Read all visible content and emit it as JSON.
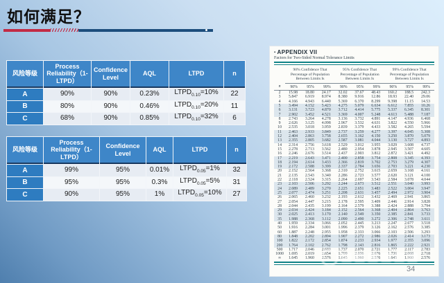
{
  "slide": {
    "title": "如何满足？",
    "page_number": "34"
  },
  "risk_tables": [
    {
      "headers": [
        "风险等级",
        "Process Reliability（1-LTPD）",
        "Confidence Level",
        "AQL",
        "LTPD",
        "n"
      ],
      "rows": [
        {
          "level": "A",
          "cells": [
            "90%",
            "90%",
            "0.23%"
          ],
          "ltpd": {
            "base": "LTPD",
            "sub": "0.10",
            "rest": "=10%"
          },
          "n": "22"
        },
        {
          "level": "B",
          "cells": [
            "80%",
            "90%",
            "0.46%"
          ],
          "ltpd": {
            "base": "LTPD",
            "sub": "0.10",
            "rest": "=20%"
          },
          "n": "11"
        },
        {
          "level": "C",
          "cells": [
            "68%",
            "90%",
            "0.85%"
          ],
          "ltpd": {
            "base": "LTPD",
            "sub": "0.10",
            "rest": "=32%"
          },
          "n": "6"
        }
      ]
    },
    {
      "headers": [
        "风险等级",
        "Process Reliability（1-LTPD）",
        "Confidence Level",
        "AQL",
        "LTPD",
        "n"
      ],
      "rows": [
        {
          "level": "A",
          "cells": [
            "99%",
            "95%",
            "0.01%"
          ],
          "ltpd": {
            "base": "LTPD",
            "sub": "0.05",
            "rest": "=1%"
          },
          "n": "32"
        },
        {
          "level": "B",
          "cells": [
            "95%",
            "95%",
            "0.3%"
          ],
          "ltpd": {
            "base": "LTPD",
            "sub": "0.05",
            "rest": "=5%"
          },
          "n": "31"
        },
        {
          "level": "C",
          "cells": [
            "90%",
            "95%",
            "1%"
          ],
          "ltpd": {
            "base": "LTPD",
            "sub": "0.05",
            "rest": "=10%"
          },
          "n": "27"
        }
      ]
    }
  ],
  "appendix": {
    "bullet": "▪",
    "title": "APPENDIX VII",
    "subtitle": "Factors for Two-Sided Normal Tolerance Limits",
    "group_headers": [
      "90% Confidence That Percentage of Population Between Limits Is",
      "95% Confidence That Percentage of Population Between Limits Is",
      "99% Confidence That Percentage of Population Between Limits Is"
    ],
    "col_headers": [
      "n",
      "90%",
      "95%",
      "99%",
      "90%",
      "95%",
      "99%",
      "90%",
      "95%",
      "99%"
    ],
    "rows": [
      [
        "2",
        "15.98",
        "18.80",
        "24.17",
        "32.02",
        "37.67",
        "48.43",
        "160.2",
        "188.5",
        "242.3"
      ],
      [
        "3",
        "5.847",
        "6.919",
        "8.974",
        "8.380",
        "9.916",
        "12.86",
        "18.93",
        "22.40",
        "29.06"
      ],
      [
        "4",
        "4.166",
        "4.943",
        "6.440",
        "5.369",
        "6.370",
        "8.299",
        "9.398",
        "11.15",
        "14.53"
      ],
      [
        "5",
        "3.494",
        "4.152",
        "5.423",
        "4.275",
        "5.079",
        "6.634",
        "6.612",
        "7.855",
        "10.26"
      ],
      [
        "6",
        "3.131",
        "3.723",
        "4.870",
        "3.712",
        "4.414",
        "5.775",
        "5.337",
        "6.345",
        "8.301"
      ],
      [
        "7",
        "2.902",
        "3.452",
        "4.521",
        "3.369",
        "4.007",
        "5.248",
        "4.613",
        "5.488",
        "7.187"
      ],
      [
        "8",
        "2.743",
        "3.264",
        "4.278",
        "3.136",
        "3.732",
        "4.891",
        "4.147",
        "4.936",
        "6.468"
      ],
      [
        "9",
        "2.626",
        "3.125",
        "4.098",
        "2.967",
        "3.532",
        "4.631",
        "3.822",
        "4.550",
        "5.966"
      ],
      [
        "10",
        "2.535",
        "3.018",
        "3.959",
        "2.839",
        "3.379",
        "4.433",
        "3.582",
        "4.265",
        "5.594"
      ],
      [
        "11",
        "2.463",
        "2.933",
        "3.849",
        "2.737",
        "3.259",
        "4.277",
        "3.397",
        "4.045",
        "5.308"
      ],
      [
        "12",
        "2.404",
        "2.863",
        "3.758",
        "2.655",
        "3.162",
        "4.150",
        "3.250",
        "3.870",
        "5.079"
      ],
      [
        "13",
        "2.355",
        "2.805",
        "3.682",
        "2.587",
        "3.081",
        "4.044",
        "3.130",
        "3.727",
        "4.893"
      ],
      [
        "14",
        "2.314",
        "2.756",
        "3.618",
        "2.529",
        "3.012",
        "3.955",
        "3.029",
        "3.608",
        "4.737"
      ],
      [
        "15",
        "2.278",
        "2.713",
        "3.562",
        "2.480",
        "2.954",
        "3.878",
        "2.945",
        "3.507",
        "4.605"
      ],
      [
        "16",
        "2.246",
        "2.676",
        "3.514",
        "2.437",
        "2.903",
        "3.812",
        "2.872",
        "3.421",
        "4.492"
      ],
      [
        "17",
        "2.219",
        "2.643",
        "3.471",
        "2.400",
        "2.858",
        "3.754",
        "2.808",
        "3.345",
        "4.393"
      ],
      [
        "18",
        "2.194",
        "2.614",
        "3.433",
        "2.366",
        "2.819",
        "3.702",
        "2.753",
        "3.279",
        "4.307"
      ],
      [
        "19",
        "2.172",
        "2.588",
        "3.399",
        "2.337",
        "2.784",
        "3.656",
        "2.703",
        "3.221",
        "4.230"
      ],
      [
        "20",
        "2.152",
        "2.564",
        "3.368",
        "2.310",
        "2.752",
        "3.615",
        "2.659",
        "3.168",
        "4.161"
      ],
      [
        "21",
        "2.135",
        "2.543",
        "3.340",
        "2.286",
        "2.723",
        "3.577",
        "2.620",
        "3.121",
        "4.100"
      ],
      [
        "22",
        "2.118",
        "2.524",
        "3.315",
        "2.264",
        "2.697",
        "3.543",
        "2.584",
        "3.078",
        "4.044"
      ],
      [
        "23",
        "2.103",
        "2.506",
        "3.292",
        "2.244",
        "2.673",
        "3.512",
        "2.551",
        "3.040",
        "3.993"
      ],
      [
        "24",
        "2.089",
        "2.489",
        "3.270",
        "2.225",
        "2.651",
        "3.483",
        "2.522",
        "3.004",
        "3.947"
      ],
      [
        "25",
        "2.077",
        "2.474",
        "3.251",
        "2.208",
        "2.631",
        "3.457",
        "2.494",
        "2.972",
        "3.904"
      ],
      [
        "26",
        "2.065",
        "2.460",
        "3.232",
        "2.193",
        "2.612",
        "3.432",
        "2.469",
        "2.941",
        "3.865"
      ],
      [
        "27",
        "2.054",
        "2.447",
        "3.215",
        "2.178",
        "2.595",
        "3.409",
        "2.446",
        "2.914",
        "3.828"
      ],
      [
        "28",
        "2.044",
        "2.435",
        "3.199",
        "2.164",
        "2.579",
        "3.388",
        "2.424",
        "2.888",
        "3.794"
      ],
      [
        "29",
        "2.034",
        "2.424",
        "3.184",
        "2.152",
        "2.564",
        "3.368",
        "2.404",
        "2.864",
        "3.763"
      ],
      [
        "30",
        "2.025",
        "2.413",
        "3.170",
        "2.140",
        "2.549",
        "3.350",
        "2.385",
        "2.841",
        "3.733"
      ],
      [
        "35",
        "1.988",
        "2.368",
        "3.112",
        "2.090",
        "2.490",
        "3.272",
        "2.306",
        "2.748",
        "3.611"
      ],
      [
        "40",
        "1.959",
        "2.334",
        "3.066",
        "2.052",
        "2.445",
        "3.213",
        "2.247",
        "2.677",
        "3.518"
      ],
      [
        "50",
        "1.916",
        "2.284",
        "3.001",
        "1.996",
        "2.379",
        "3.126",
        "2.162",
        "2.576",
        "3.385"
      ],
      [
        "60",
        "1.887",
        "2.248",
        "2.955",
        "1.958",
        "2.333",
        "3.066",
        "2.103",
        "2.506",
        "3.293"
      ],
      [
        "80",
        "1.848",
        "2.202",
        "2.894",
        "1.907",
        "2.272",
        "2.986",
        "2.026",
        "2.414",
        "3.173"
      ],
      [
        "100",
        "1.822",
        "2.172",
        "2.854",
        "1.874",
        "2.233",
        "2.934",
        "1.977",
        "2.355",
        "3.096"
      ],
      [
        "200",
        "1.764",
        "2.102",
        "2.762",
        "1.798",
        "2.143",
        "2.816",
        "1.865",
        "2.222",
        "2.921"
      ],
      [
        "500",
        "1.717",
        "2.046",
        "2.689",
        "1.737",
        "2.070",
        "2.721",
        "1.777",
        "2.117",
        "2.783"
      ],
      [
        "1000",
        "1.695",
        "2.019",
        "2.654",
        "1.709",
        "2.036",
        "2.676",
        "1.736",
        "2.068",
        "2.718"
      ],
      [
        "∞",
        "1.645",
        "1.960",
        "2.576",
        "1.645",
        "1.960",
        "2.576",
        "1.645",
        "1.960",
        "2.576"
      ]
    ]
  },
  "colors": {
    "accent_red": "#c22b45",
    "accent_navy": "#1c4d7c",
    "header_blue": "#3e86c8",
    "level_blue": "#2e7cc0",
    "teal_rule": "#0e8186"
  }
}
